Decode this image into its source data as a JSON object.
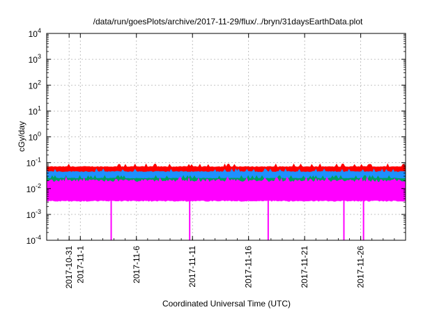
{
  "chart_data": {
    "type": "area",
    "title": "/data/run/goesPlots/archive/2017-11-29/flux/../bryn/31daysEarthData.plot",
    "xlabel": "Coordinated Universal Time (UTC)",
    "ylabel": "cGy/day",
    "yscale": "log",
    "ylim": [
      0.0001,
      10000
    ],
    "xlim": [
      "2017-10-29",
      "2017-11-30"
    ],
    "grid": true,
    "legend": "none",
    "y_ticks": [
      {
        "value": 0.0001,
        "base": "10",
        "exp": "-4"
      },
      {
        "value": 0.001,
        "base": "10",
        "exp": "-3"
      },
      {
        "value": 0.01,
        "base": "10",
        "exp": "-2"
      },
      {
        "value": 0.1,
        "base": "10",
        "exp": "-1"
      },
      {
        "value": 1,
        "base": "10",
        "exp": "0"
      },
      {
        "value": 10,
        "base": "10",
        "exp": "1"
      },
      {
        "value": 100,
        "base": "10",
        "exp": "2"
      },
      {
        "value": 1000,
        "base": "10",
        "exp": "3"
      },
      {
        "value": 10000,
        "base": "10",
        "exp": "4"
      }
    ],
    "x_ticks": [
      {
        "date": "2017-10-31",
        "label": "2017-10-31"
      },
      {
        "date": "2017-11-01",
        "label": "2017-11-1"
      },
      {
        "date": "2017-11-06",
        "label": "2017-11-6"
      },
      {
        "date": "2017-11-11",
        "label": "2017-11-11"
      },
      {
        "date": "2017-11-16",
        "label": "2017-11-16"
      },
      {
        "date": "2017-11-21",
        "label": "2017-11-21"
      },
      {
        "date": "2017-11-26",
        "label": "2017-11-26"
      }
    ],
    "series": [
      {
        "color": "#ff0000",
        "band": [
          0.045,
          0.07
        ]
      },
      {
        "color": "#1e90ff",
        "band": [
          0.025,
          0.045
        ]
      },
      {
        "color": "#00a060",
        "band": [
          0.018,
          0.025
        ]
      },
      {
        "color": "#ff00ff",
        "band": [
          0.0035,
          0.02
        ]
      }
    ],
    "dropouts": {
      "color": "#ff00ff",
      "value": 0.0001,
      "dates": [
        "2017-11-03T18:00",
        "2017-11-10T18:00",
        "2017-11-17T18:00",
        "2017-11-24T12:00",
        "2017-11-26T06:00"
      ]
    }
  }
}
